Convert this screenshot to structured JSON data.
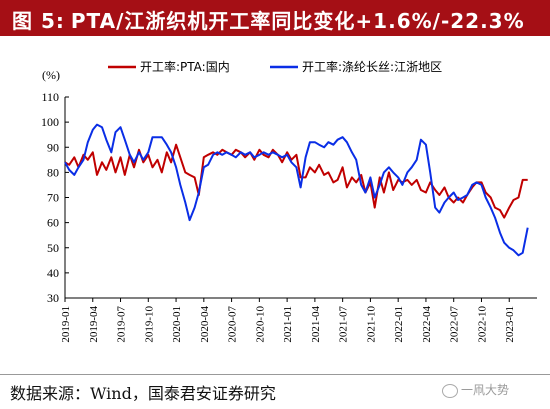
{
  "title": {
    "figure_label": "图 5:",
    "text": "PTA/江浙织机开工率同比变化+1.6%/-22.3%"
  },
  "colors": {
    "title_bg": "#a50f15",
    "series_red": "#c00000",
    "series_blue": "#0a2ee6",
    "axis": "#000000"
  },
  "footer": {
    "source": "数据来源：Wind，国泰君安证券研究",
    "watermark": "一凧大势",
    "watermark_icon": "wechat-icon"
  },
  "chart_data": {
    "type": "line",
    "unit_label": "(%)",
    "ylim": [
      30,
      110
    ],
    "y_ticks": [
      30,
      40,
      50,
      60,
      70,
      80,
      90,
      100,
      110
    ],
    "x_ticks": [
      "2019-01",
      "2019-04",
      "2019-07",
      "2019-10",
      "2020-01",
      "2020-04",
      "2020-07",
      "2020-10",
      "2021-01",
      "2021-04",
      "2021-07",
      "2021-10",
      "2022-01",
      "2022-04",
      "2022-07",
      "2022-10",
      "2023-01"
    ],
    "x_range_months": [
      "2019-01",
      "2023-04"
    ],
    "legend_position": "top",
    "grid": false,
    "series": [
      {
        "name": "开工率:PTA:国内",
        "color": "#c00000",
        "points": [
          [
            "2019-01-01",
            84
          ],
          [
            "2019-01-15",
            83
          ],
          [
            "2019-02-01",
            86
          ],
          [
            "2019-02-15",
            82
          ],
          [
            "2019-03-01",
            87
          ],
          [
            "2019-03-15",
            85
          ],
          [
            "2019-04-01",
            88
          ],
          [
            "2019-04-15",
            79
          ],
          [
            "2019-05-01",
            84
          ],
          [
            "2019-05-15",
            81
          ],
          [
            "2019-06-01",
            86
          ],
          [
            "2019-06-15",
            80
          ],
          [
            "2019-07-01",
            86
          ],
          [
            "2019-07-15",
            79
          ],
          [
            "2019-08-01",
            87
          ],
          [
            "2019-08-15",
            82
          ],
          [
            "2019-09-01",
            89
          ],
          [
            "2019-09-15",
            84
          ],
          [
            "2019-10-01",
            87
          ],
          [
            "2019-10-15",
            82
          ],
          [
            "2019-11-01",
            85
          ],
          [
            "2019-11-15",
            80
          ],
          [
            "2019-12-01",
            88
          ],
          [
            "2019-12-15",
            84
          ],
          [
            "2020-01-01",
            91
          ],
          [
            "2020-01-15",
            86
          ],
          [
            "2020-02-01",
            80
          ],
          [
            "2020-02-15",
            79
          ],
          [
            "2020-03-01",
            78
          ],
          [
            "2020-03-15",
            71
          ],
          [
            "2020-04-01",
            86
          ],
          [
            "2020-04-15",
            87
          ],
          [
            "2020-05-01",
            88
          ],
          [
            "2020-05-15",
            87
          ],
          [
            "2020-06-01",
            89
          ],
          [
            "2020-06-15",
            88
          ],
          [
            "2020-07-01",
            87
          ],
          [
            "2020-07-15",
            89
          ],
          [
            "2020-08-01",
            88
          ],
          [
            "2020-08-15",
            86
          ],
          [
            "2020-09-01",
            88
          ],
          [
            "2020-09-15",
            85
          ],
          [
            "2020-10-01",
            89
          ],
          [
            "2020-10-15",
            87
          ],
          [
            "2020-11-01",
            86
          ],
          [
            "2020-11-15",
            89
          ],
          [
            "2020-12-01",
            87
          ],
          [
            "2020-12-15",
            84
          ],
          [
            "2021-01-01",
            88
          ],
          [
            "2021-01-15",
            85
          ],
          [
            "2021-02-01",
            87
          ],
          [
            "2021-02-15",
            78
          ],
          [
            "2021-03-01",
            78
          ],
          [
            "2021-03-15",
            82
          ],
          [
            "2021-04-01",
            80
          ],
          [
            "2021-04-15",
            83
          ],
          [
            "2021-05-01",
            79
          ],
          [
            "2021-05-15",
            80
          ],
          [
            "2021-06-01",
            76
          ],
          [
            "2021-06-15",
            77
          ],
          [
            "2021-07-01",
            82
          ],
          [
            "2021-07-15",
            74
          ],
          [
            "2021-08-01",
            78
          ],
          [
            "2021-08-15",
            76
          ],
          [
            "2021-09-01",
            79
          ],
          [
            "2021-09-15",
            72
          ],
          [
            "2021-10-01",
            76
          ],
          [
            "2021-10-15",
            66
          ],
          [
            "2021-11-01",
            78
          ],
          [
            "2021-11-15",
            72
          ],
          [
            "2021-12-01",
            80
          ],
          [
            "2021-12-15",
            73
          ],
          [
            "2022-01-01",
            77
          ],
          [
            "2022-01-15",
            76
          ],
          [
            "2022-02-01",
            77
          ],
          [
            "2022-02-15",
            75
          ],
          [
            "2022-03-01",
            77
          ],
          [
            "2022-03-15",
            73
          ],
          [
            "2022-04-01",
            72
          ],
          [
            "2022-04-15",
            76
          ],
          [
            "2022-05-01",
            73
          ],
          [
            "2022-05-15",
            71
          ],
          [
            "2022-06-01",
            74
          ],
          [
            "2022-06-15",
            70
          ],
          [
            "2022-07-01",
            68
          ],
          [
            "2022-07-15",
            70
          ],
          [
            "2022-08-01",
            68
          ],
          [
            "2022-08-15",
            71
          ],
          [
            "2022-09-01",
            74
          ],
          [
            "2022-09-15",
            76
          ],
          [
            "2022-10-01",
            76
          ],
          [
            "2022-10-15",
            72
          ],
          [
            "2022-11-01",
            70
          ],
          [
            "2022-11-15",
            66
          ],
          [
            "2022-12-01",
            65
          ],
          [
            "2022-12-15",
            62
          ],
          [
            "2023-01-01",
            66
          ],
          [
            "2023-01-15",
            69
          ],
          [
            "2023-02-01",
            70
          ],
          [
            "2023-02-15",
            77
          ],
          [
            "2023-03-01",
            77
          ]
        ]
      },
      {
        "name": "开工率:涤纶长丝:江浙地区",
        "color": "#0a2ee6",
        "points": [
          [
            "2019-01-01",
            84
          ],
          [
            "2019-01-15",
            81
          ],
          [
            "2019-02-01",
            79
          ],
          [
            "2019-02-15",
            82
          ],
          [
            "2019-03-01",
            85
          ],
          [
            "2019-03-15",
            92
          ],
          [
            "2019-04-01",
            97
          ],
          [
            "2019-04-15",
            99
          ],
          [
            "2019-05-01",
            98
          ],
          [
            "2019-05-15",
            93
          ],
          [
            "2019-06-01",
            88
          ],
          [
            "2019-06-15",
            96
          ],
          [
            "2019-07-01",
            98
          ],
          [
            "2019-07-15",
            93
          ],
          [
            "2019-08-01",
            87
          ],
          [
            "2019-08-15",
            84
          ],
          [
            "2019-09-01",
            88
          ],
          [
            "2019-09-15",
            85
          ],
          [
            "2019-10-01",
            88
          ],
          [
            "2019-10-15",
            94
          ],
          [
            "2019-11-01",
            94
          ],
          [
            "2019-11-15",
            94
          ],
          [
            "2019-12-01",
            91
          ],
          [
            "2019-12-15",
            88
          ],
          [
            "2020-01-01",
            82
          ],
          [
            "2020-01-15",
            75
          ],
          [
            "2020-02-01",
            68
          ],
          [
            "2020-02-15",
            61
          ],
          [
            "2020-03-01",
            66
          ],
          [
            "2020-03-15",
            72
          ],
          [
            "2020-04-01",
            82
          ],
          [
            "2020-04-15",
            83
          ],
          [
            "2020-05-01",
            87
          ],
          [
            "2020-05-15",
            88
          ],
          [
            "2020-06-01",
            87
          ],
          [
            "2020-06-15",
            88
          ],
          [
            "2020-07-01",
            87
          ],
          [
            "2020-07-15",
            86
          ],
          [
            "2020-08-01",
            88
          ],
          [
            "2020-08-15",
            87
          ],
          [
            "2020-09-01",
            88
          ],
          [
            "2020-09-15",
            86
          ],
          [
            "2020-10-01",
            87
          ],
          [
            "2020-10-15",
            88
          ],
          [
            "2020-11-01",
            87
          ],
          [
            "2020-11-15",
            88
          ],
          [
            "2020-12-01",
            87
          ],
          [
            "2020-12-15",
            86
          ],
          [
            "2021-01-01",
            87
          ],
          [
            "2021-01-15",
            84
          ],
          [
            "2021-02-01",
            82
          ],
          [
            "2021-02-15",
            74
          ],
          [
            "2021-03-01",
            86
          ],
          [
            "2021-03-15",
            92
          ],
          [
            "2021-04-01",
            92
          ],
          [
            "2021-04-15",
            91
          ],
          [
            "2021-05-01",
            90
          ],
          [
            "2021-05-15",
            92
          ],
          [
            "2021-06-01",
            91
          ],
          [
            "2021-06-15",
            93
          ],
          [
            "2021-07-01",
            94
          ],
          [
            "2021-07-15",
            92
          ],
          [
            "2021-08-01",
            88
          ],
          [
            "2021-08-15",
            85
          ],
          [
            "2021-09-01",
            75
          ],
          [
            "2021-09-15",
            72
          ],
          [
            "2021-10-01",
            78
          ],
          [
            "2021-10-15",
            70
          ],
          [
            "2021-11-01",
            75
          ],
          [
            "2021-11-15",
            80
          ],
          [
            "2021-12-01",
            82
          ],
          [
            "2021-12-15",
            80
          ],
          [
            "2022-01-01",
            78
          ],
          [
            "2022-01-15",
            75
          ],
          [
            "2022-02-01",
            80
          ],
          [
            "2022-02-15",
            82
          ],
          [
            "2022-03-01",
            85
          ],
          [
            "2022-03-15",
            93
          ],
          [
            "2022-04-01",
            91
          ],
          [
            "2022-04-15",
            80
          ],
          [
            "2022-05-01",
            66
          ],
          [
            "2022-05-15",
            64
          ],
          [
            "2022-06-01",
            68
          ],
          [
            "2022-06-15",
            70
          ],
          [
            "2022-07-01",
            72
          ],
          [
            "2022-07-15",
            69
          ],
          [
            "2022-08-01",
            70
          ],
          [
            "2022-08-15",
            71
          ],
          [
            "2022-09-01",
            75
          ],
          [
            "2022-09-15",
            76
          ],
          [
            "2022-10-01",
            75
          ],
          [
            "2022-10-15",
            70
          ],
          [
            "2022-11-01",
            66
          ],
          [
            "2022-11-15",
            62
          ],
          [
            "2022-12-01",
            56
          ],
          [
            "2022-12-15",
            52
          ],
          [
            "2023-01-01",
            50
          ],
          [
            "2023-01-15",
            49
          ],
          [
            "2023-02-01",
            47
          ],
          [
            "2023-02-15",
            48
          ],
          [
            "2023-03-01",
            58
          ]
        ]
      }
    ]
  }
}
